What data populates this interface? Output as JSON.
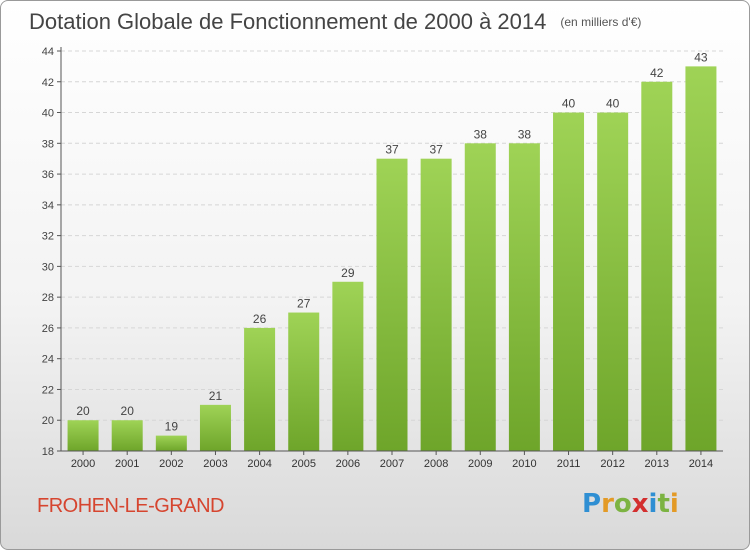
{
  "title": "Dotation Globale de Fonctionnement de 2000 à 2014",
  "subtitle": "(en milliers d'€)",
  "commune": "FROHEN-LE-GRAND",
  "logo_text": "Proxiti",
  "colors": {
    "bar_light": "#9fd356",
    "bar_dark": "#6ea52a",
    "axis": "#555555",
    "grid": "#d6d6d6",
    "commune": "#d6452f"
  },
  "chart_data": {
    "type": "bar",
    "title": "Dotation Globale de Fonctionnement de 2000 à 2014",
    "subtitle": "(en milliers d'€)",
    "xlabel": "",
    "ylabel": "",
    "ylim": [
      18,
      44
    ],
    "yticks": [
      18,
      20,
      22,
      24,
      26,
      28,
      30,
      32,
      34,
      36,
      38,
      40,
      42,
      44
    ],
    "grid": true,
    "categories": [
      "2000",
      "2001",
      "2002",
      "2003",
      "2004",
      "2005",
      "2006",
      "2007",
      "2008",
      "2009",
      "2010",
      "2011",
      "2012",
      "2013",
      "2014"
    ],
    "values": [
      20,
      20,
      19,
      21,
      26,
      27,
      29,
      37,
      37,
      38,
      38,
      40,
      40,
      42,
      43
    ]
  }
}
